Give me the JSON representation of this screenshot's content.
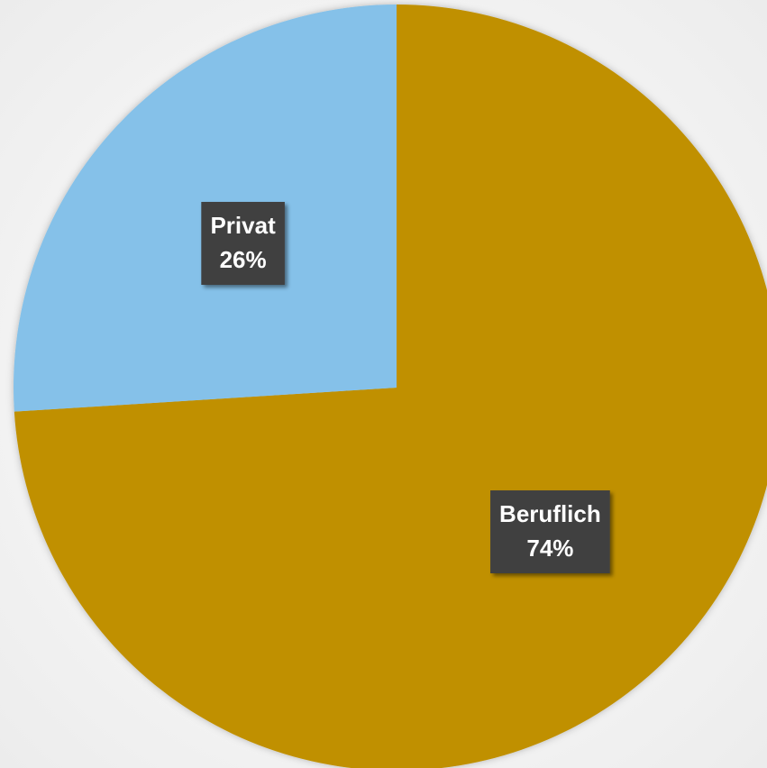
{
  "chart_data": {
    "type": "pie",
    "categories": [
      "Beruflich",
      "Privat"
    ],
    "values": [
      74,
      26
    ],
    "value_labels": [
      "74%",
      "26%"
    ],
    "colors": [
      "#c09000",
      "#85c1e9"
    ]
  }
}
